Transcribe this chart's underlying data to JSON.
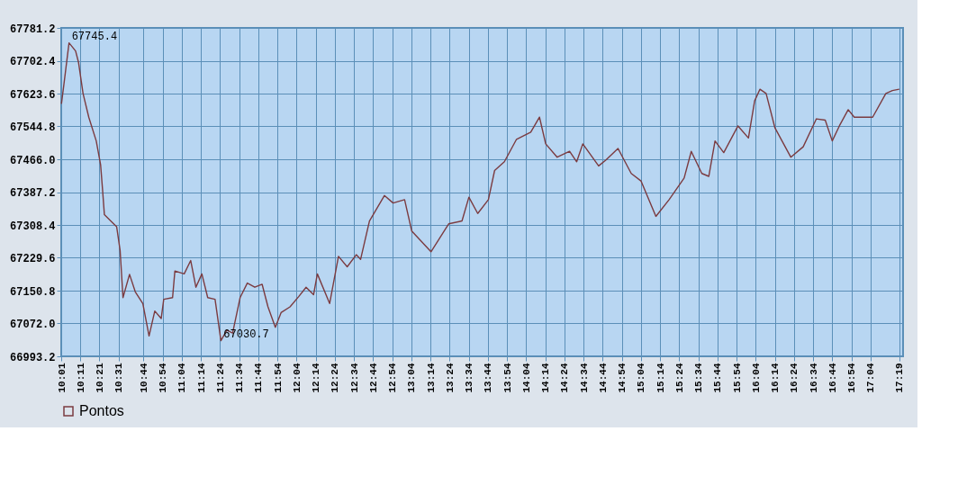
{
  "chart_data": {
    "type": "line",
    "x": [
      10.019,
      10.04,
      10.085,
      10.142,
      10.168,
      10.207,
      10.257,
      10.322,
      10.36,
      10.378,
      10.393,
      10.448,
      10.5,
      10.53,
      10.555,
      10.612,
      10.662,
      10.728,
      10.782,
      10.832,
      10.888,
      10.91,
      10.987,
      11.007,
      11.088,
      11.145,
      11.19,
      11.242,
      11.293,
      11.357,
      11.408,
      11.46,
      11.51,
      11.575,
      11.638,
      11.703,
      11.767,
      11.818,
      11.882,
      11.932,
      12.01,
      12.087,
      12.15,
      12.215,
      12.248,
      12.355,
      12.432,
      12.508,
      12.587,
      12.625,
      12.702,
      12.832,
      12.908,
      13.008,
      13.07,
      13.238,
      13.392,
      13.508,
      13.568,
      13.645,
      13.738,
      13.792,
      13.877,
      13.983,
      14.107,
      14.183,
      14.237,
      14.337,
      14.445,
      14.507,
      14.56,
      14.698,
      14.76,
      14.867,
      14.982,
      15.067,
      15.197,
      15.312,
      15.443,
      15.505,
      15.597,
      15.658,
      15.712,
      15.788,
      15.912,
      16.003,
      16.057,
      16.103,
      16.157,
      16.233,
      16.372,
      16.48,
      16.595,
      16.672,
      16.733,
      16.795,
      16.872,
      16.925,
      17.085,
      17.2,
      17.257,
      17.317
    ],
    "series": [
      {
        "name": "Pontos",
        "color": "#7b3b40",
        "values": [
          67599,
          67645,
          67745.4,
          67726,
          67698,
          67624,
          67567,
          67510,
          67453,
          67389,
          67333,
          67318,
          67304,
          67247,
          67134,
          67190,
          67148,
          67120,
          67042,
          67102,
          67084,
          67130,
          67134,
          67198,
          67191,
          67223,
          67159,
          67191,
          67134,
          67130,
          67030.7,
          67056,
          67049,
          67134,
          67169,
          67159,
          67166,
          67112,
          67063,
          67098,
          67112,
          67137,
          67159,
          67141,
          67191,
          67120,
          67233,
          67208,
          67237,
          67226,
          67318,
          67379,
          67361,
          67369,
          67294,
          67244,
          67311,
          67318,
          67375,
          67336,
          67369,
          67439,
          67460,
          67514,
          67531,
          67567,
          67503,
          67471,
          67485,
          67460,
          67503,
          67450,
          67464,
          67492,
          67432,
          67414,
          67329,
          67369,
          67421,
          67485,
          67432,
          67425,
          67510,
          67482,
          67546,
          67517,
          67606,
          67634,
          67624,
          67542,
          67471,
          67496,
          67563,
          67560,
          67510,
          67546,
          67585,
          67567,
          67567,
          67624,
          67631,
          67634
        ]
      }
    ],
    "xlim": [
      10.017,
      17.35
    ],
    "xticks": [
      {
        "value": 10.017,
        "label": "10:01"
      },
      {
        "value": 10.183,
        "label": "10:11"
      },
      {
        "value": 10.35,
        "label": "10:21"
      },
      {
        "value": 10.517,
        "label": "10:31"
      },
      {
        "value": 10.733,
        "label": "10:44"
      },
      {
        "value": 10.9,
        "label": "10:54"
      },
      {
        "value": 11.067,
        "label": "11:04"
      },
      {
        "value": 11.233,
        "label": "11:14"
      },
      {
        "value": 11.4,
        "label": "11:24"
      },
      {
        "value": 11.567,
        "label": "11:34"
      },
      {
        "value": 11.733,
        "label": "11:44"
      },
      {
        "value": 11.9,
        "label": "11:54"
      },
      {
        "value": 12.067,
        "label": "12:04"
      },
      {
        "value": 12.233,
        "label": "12:14"
      },
      {
        "value": 12.4,
        "label": "12:24"
      },
      {
        "value": 12.567,
        "label": "12:34"
      },
      {
        "value": 12.733,
        "label": "12:44"
      },
      {
        "value": 12.9,
        "label": "12:54"
      },
      {
        "value": 13.067,
        "label": "13:04"
      },
      {
        "value": 13.233,
        "label": "13:14"
      },
      {
        "value": 13.4,
        "label": "13:24"
      },
      {
        "value": 13.567,
        "label": "13:34"
      },
      {
        "value": 13.733,
        "label": "13:44"
      },
      {
        "value": 13.9,
        "label": "13:54"
      },
      {
        "value": 14.067,
        "label": "14:04"
      },
      {
        "value": 14.233,
        "label": "14:14"
      },
      {
        "value": 14.4,
        "label": "14:24"
      },
      {
        "value": 14.567,
        "label": "14:34"
      },
      {
        "value": 14.733,
        "label": "14:44"
      },
      {
        "value": 14.9,
        "label": "14:54"
      },
      {
        "value": 15.067,
        "label": "15:04"
      },
      {
        "value": 15.233,
        "label": "15:14"
      },
      {
        "value": 15.4,
        "label": "15:24"
      },
      {
        "value": 15.567,
        "label": "15:34"
      },
      {
        "value": 15.733,
        "label": "15:44"
      },
      {
        "value": 15.9,
        "label": "15:54"
      },
      {
        "value": 16.067,
        "label": "16:04"
      },
      {
        "value": 16.233,
        "label": "16:14"
      },
      {
        "value": 16.4,
        "label": "16:24"
      },
      {
        "value": 16.567,
        "label": "16:34"
      },
      {
        "value": 16.733,
        "label": "16:44"
      },
      {
        "value": 16.9,
        "label": "16:54"
      },
      {
        "value": 17.067,
        "label": "17:04"
      },
      {
        "value": 17.317,
        "label": "17:19"
      }
    ],
    "ylim": [
      66993.2,
      67781.2
    ],
    "yticks": [
      66993.2,
      {
        "value": 67072,
        "label": "67072.0"
      },
      67150.8,
      67229.6,
      67308.4,
      67387.2,
      {
        "value": 67466,
        "label": "67466.0"
      },
      67544.8,
      67623.6,
      67702.4,
      67781.2
    ],
    "grid": true,
    "legend": "bottom left",
    "annotations": [
      {
        "text": "67745.4",
        "x": 10.085,
        "y": 67745.4
      },
      {
        "text": "67030.7",
        "x": 11.408,
        "y": 67030.7
      }
    ]
  }
}
